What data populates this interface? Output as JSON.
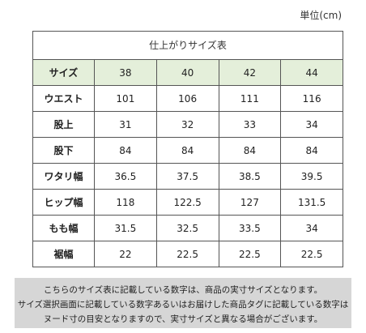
{
  "unit_note": "単位(cm)",
  "table": {
    "title": "仕上がりサイズ表",
    "header_label": "サイズ",
    "sizes": [
      "38",
      "40",
      "42",
      "44"
    ],
    "rows": [
      {
        "label": "ウエスト",
        "values": [
          "101",
          "106",
          "111",
          "116"
        ]
      },
      {
        "label": "股上",
        "values": [
          "31",
          "32",
          "33",
          "34"
        ]
      },
      {
        "label": "股下",
        "values": [
          "84",
          "84",
          "84",
          "84"
        ]
      },
      {
        "label": "ワタリ幅",
        "values": [
          "36.5",
          "37.5",
          "38.5",
          "39.5"
        ]
      },
      {
        "label": "ヒップ幅",
        "values": [
          "118",
          "122.5",
          "127",
          "131.5"
        ]
      },
      {
        "label": "もも幅",
        "values": [
          "31.5",
          "32.5",
          "33.5",
          "34"
        ]
      },
      {
        "label": "裾幅",
        "values": [
          "22",
          "22.5",
          "22.5",
          "22.5"
        ]
      }
    ]
  },
  "notice": {
    "lines": [
      "こちらのサイズ表に記載している数字は、商品の実寸サイズとなります。",
      "サイズ選択画面に記載している数字あるいはお届けした商品タグに記載している数字は",
      "ヌード寸の目安となりますので、実寸サイズと異なる場合がございます。"
    ]
  },
  "colors": {
    "header_row_bg": "#e4efda",
    "notice_bg": "#d6d6d6",
    "border": "#555555"
  }
}
